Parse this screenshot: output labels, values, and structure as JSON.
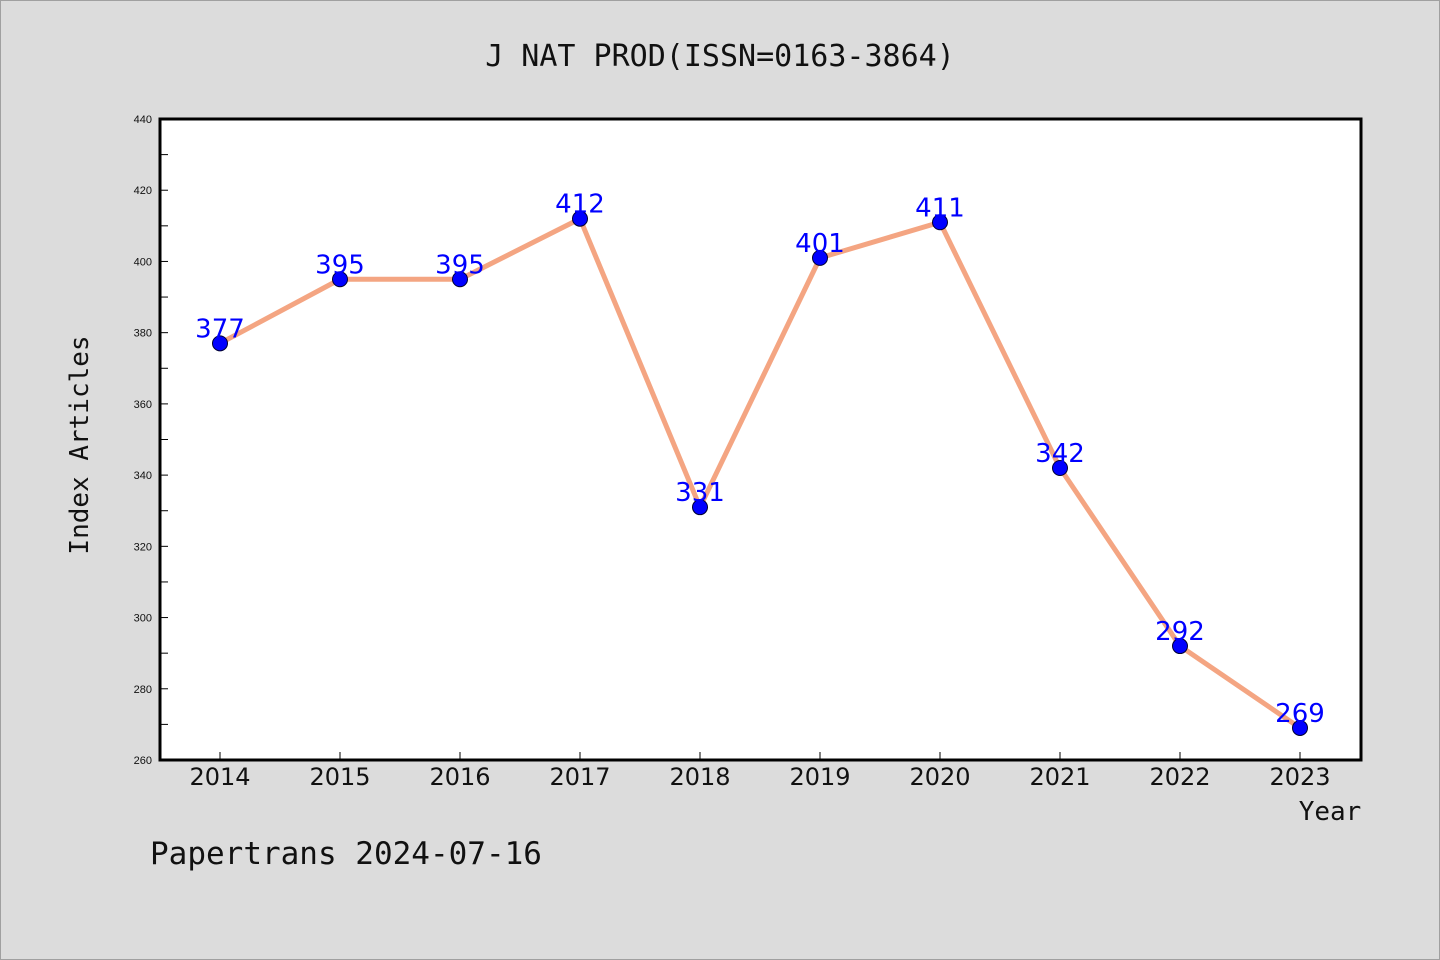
{
  "chart_data": {
    "type": "line",
    "title": "J NAT PROD(ISSN=0163-3864)",
    "xlabel": "Year",
    "ylabel": "Index Articles",
    "categories": [
      "2014",
      "2015",
      "2016",
      "2017",
      "2018",
      "2019",
      "2020",
      "2021",
      "2022",
      "2023"
    ],
    "values": [
      377,
      395,
      395,
      412,
      331,
      401,
      411,
      342,
      292,
      269
    ],
    "ylim": [
      260,
      440
    ],
    "yticks": [
      260,
      280,
      300,
      320,
      340,
      360,
      380,
      400,
      420,
      440
    ],
    "grid": false,
    "line_color": "#f4a582",
    "marker_color": "#0000ff",
    "label_color": "#0000ff",
    "plot_background": "#ffffff",
    "figure_background": "#dcdcdc"
  },
  "footer": "Papertrans 2024-07-16"
}
